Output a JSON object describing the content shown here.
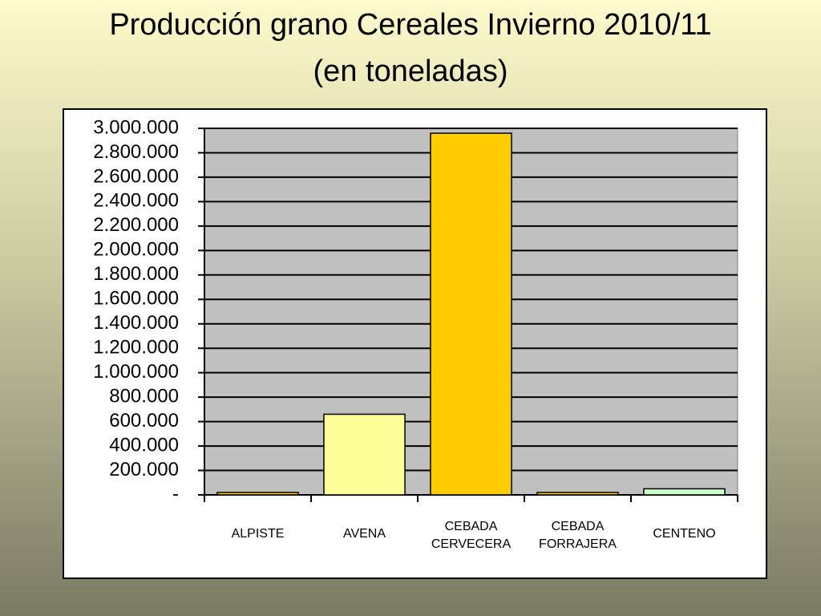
{
  "chart_data": {
    "type": "bar",
    "title": "Producción grano Cereales Invierno 2010/11 (en toneladas)",
    "categories": [
      "ALPISTE",
      "AVENA",
      "CEBADA CERVECERA",
      "CEBADA FORRAJERA",
      "CENTENO"
    ],
    "values": [
      20000,
      660000,
      2960000,
      20000,
      50000
    ],
    "colors": [
      "#ffcc00",
      "#ffff99",
      "#ffcc00",
      "#ffcc00",
      "#ccffcc"
    ],
    "ylim": [
      0,
      3000000
    ],
    "yticks": [
      {
        "value": 0,
        "label": "-"
      },
      {
        "value": 200000,
        "label": "200.000"
      },
      {
        "value": 400000,
        "label": "400.000"
      },
      {
        "value": 600000,
        "label": "600.000"
      },
      {
        "value": 800000,
        "label": "800.000"
      },
      {
        "value": 1000000,
        "label": "1.000.000"
      },
      {
        "value": 1200000,
        "label": "1.200.000"
      },
      {
        "value": 1400000,
        "label": "1.400.000"
      },
      {
        "value": 1600000,
        "label": "1.600.000"
      },
      {
        "value": 1800000,
        "label": "1.800.000"
      },
      {
        "value": 2000000,
        "label": "2.000.000"
      },
      {
        "value": 2200000,
        "label": "2.200.000"
      },
      {
        "value": 2400000,
        "label": "2.400.000"
      },
      {
        "value": 2600000,
        "label": "2.600.000"
      },
      {
        "value": 2800000,
        "label": "2.800.000"
      },
      {
        "value": 3000000,
        "label": "3.000.000"
      }
    ],
    "grid": true
  }
}
